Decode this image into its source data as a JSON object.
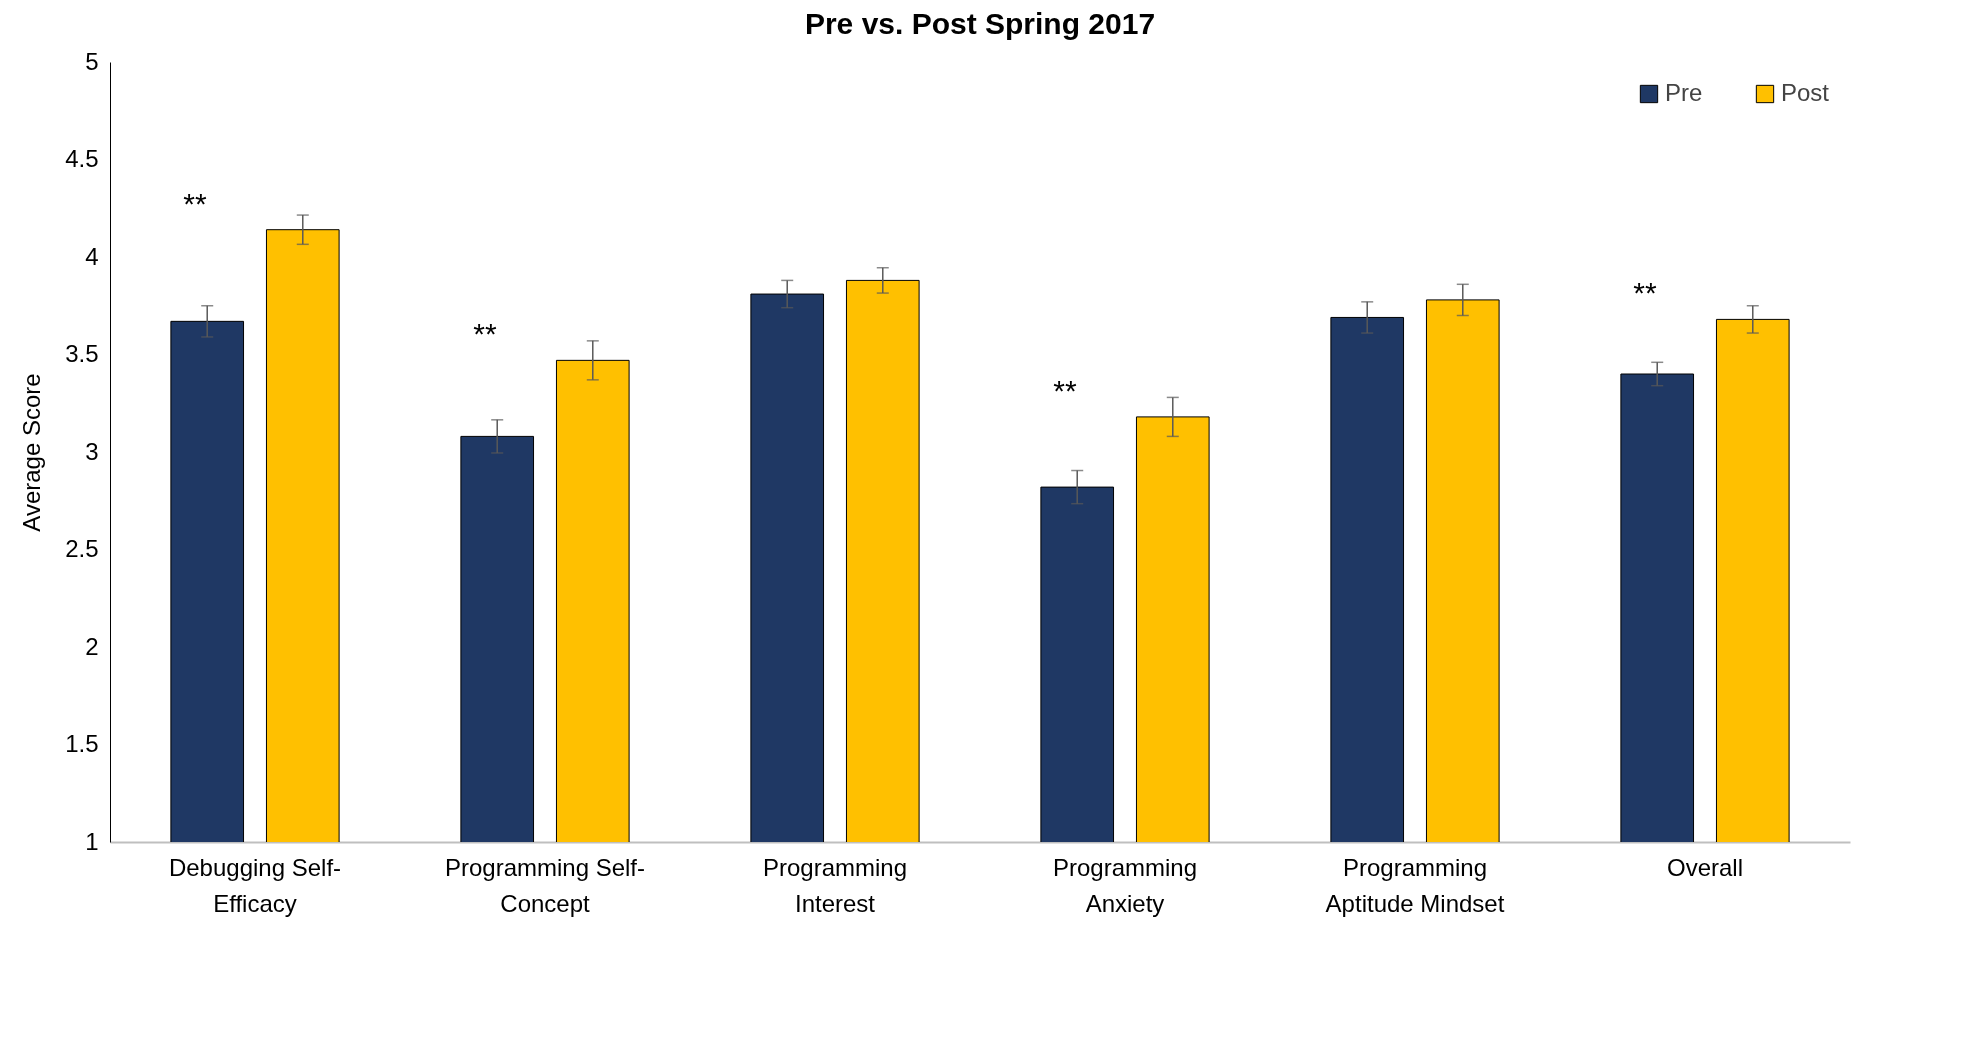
{
  "chart_data": {
    "type": "bar",
    "title": "Pre vs. Post Spring 2017",
    "ylabel": "Average Score",
    "categories": [
      "Debugging Self-Efficacy",
      "Programming Self-Concept",
      "Programming Interest",
      "Programming Anxiety",
      "Programming Aptitude Mindset",
      "Overall"
    ],
    "series": [
      {
        "name": "Pre",
        "color": "#1f3864",
        "values": [
          3.67,
          3.08,
          3.81,
          2.82,
          3.69,
          3.4
        ],
        "errors": [
          0.08,
          0.085,
          0.07,
          0.085,
          0.08,
          0.06
        ]
      },
      {
        "name": "Post",
        "color": "#ffc000",
        "values": [
          4.14,
          3.47,
          3.88,
          3.18,
          3.78,
          3.68
        ],
        "errors": [
          0.075,
          0.1,
          0.065,
          0.1,
          0.08,
          0.07
        ]
      }
    ],
    "ylim": [
      1,
      5
    ],
    "yticks": [
      1,
      1.5,
      2,
      2.5,
      3,
      3.5,
      4,
      4.5,
      5
    ],
    "grid": false,
    "legend": "top right",
    "annotations": [
      "**",
      "**",
      "**",
      "**"
    ]
  }
}
